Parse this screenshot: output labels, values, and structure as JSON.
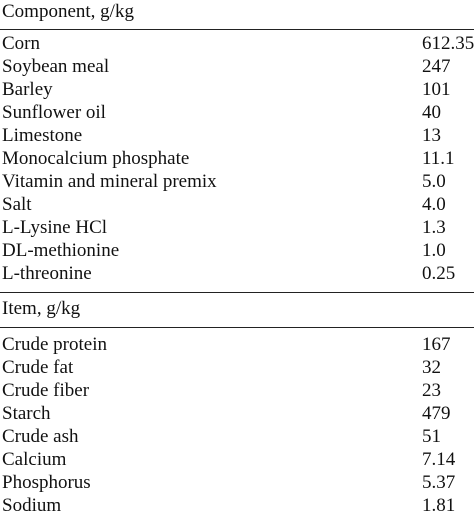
{
  "sections": [
    {
      "header": "Component, g/kg",
      "rows": [
        {
          "name": "Corn",
          "value": "612.35"
        },
        {
          "name": "Soybean meal",
          "value": "247"
        },
        {
          "name": "Barley",
          "value": "101"
        },
        {
          "name": "Sunflower oil",
          "value": "40"
        },
        {
          "name": "Limestone",
          "value": "13"
        },
        {
          "name": "Monocalcium phosphate",
          "value": "11.1"
        },
        {
          "name": "Vitamin and mineral premix",
          "value": "5.0"
        },
        {
          "name": "Salt",
          "value": "4.0"
        },
        {
          "name": "L-Lysine HCl",
          "value": "1.3"
        },
        {
          "name": "DL-methionine",
          "value": "1.0"
        },
        {
          "name": "L-threonine",
          "value": "0.25"
        }
      ]
    },
    {
      "header": "Item, g/kg",
      "rows": [
        {
          "name": "Crude protein",
          "value": "167"
        },
        {
          "name": "Crude fat",
          "value": "32"
        },
        {
          "name": "Crude fiber",
          "value": "23"
        },
        {
          "name": "Starch",
          "value": "479"
        },
        {
          "name": "Crude ash",
          "value": "51"
        },
        {
          "name": "Calcium",
          "value": "7.14"
        },
        {
          "name": "Phosphorus",
          "value": "5.37"
        },
        {
          "name": "Sodium",
          "value": "1.81"
        }
      ]
    }
  ]
}
